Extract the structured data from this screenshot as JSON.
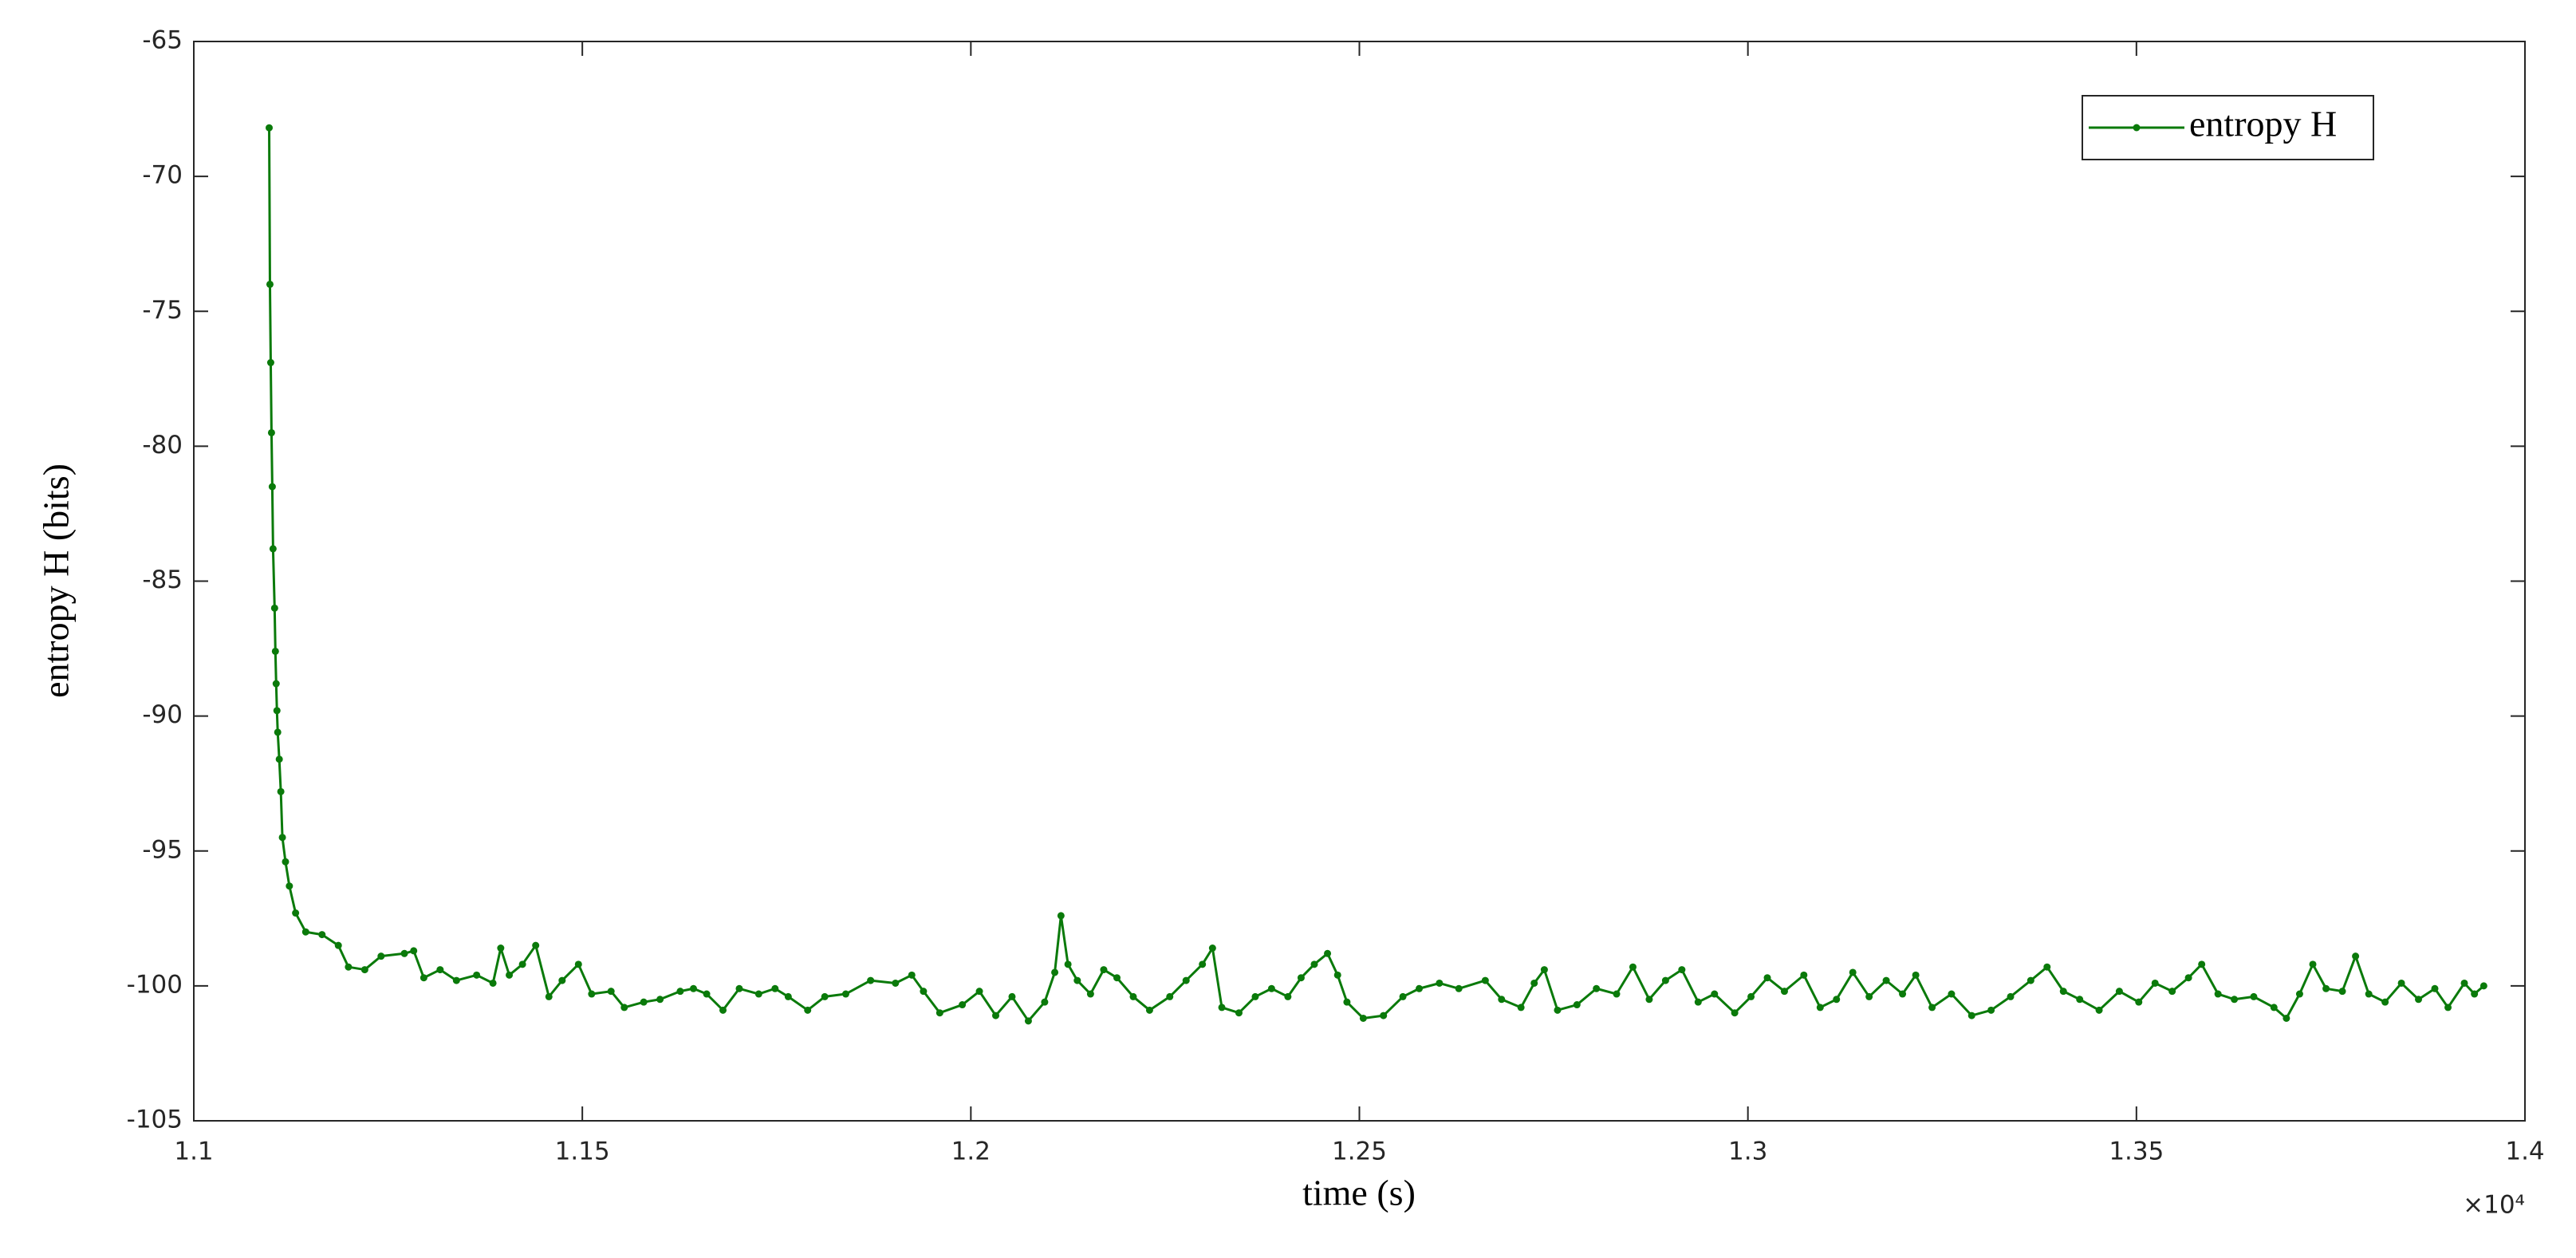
{
  "chart_data": {
    "type": "line",
    "xlabel": "time (s)",
    "ylabel": "entropy H (bits)",
    "x_multiplier": "×10⁴",
    "xlim": [
      11000,
      14000
    ],
    "xticks": [
      {
        "value": 11000,
        "label": "1.1"
      },
      {
        "value": 11500,
        "label": "1.15"
      },
      {
        "value": 12000,
        "label": "1.2"
      },
      {
        "value": 12500,
        "label": "1.25"
      },
      {
        "value": 13000,
        "label": "1.3"
      },
      {
        "value": 13500,
        "label": "1.35"
      },
      {
        "value": 14000,
        "label": "1.4"
      }
    ],
    "ylim": [
      -105,
      -65
    ],
    "yticks": [
      -105,
      -100,
      -95,
      -90,
      -85,
      -80,
      -75,
      -70,
      -65
    ],
    "grid": false,
    "legend_position": "top-right",
    "x": [
      11097,
      11098,
      11099,
      11100,
      11101,
      11102,
      11104,
      11105,
      11106,
      11107,
      11108,
      11110,
      11112,
      11114,
      11118,
      11123,
      11131,
      11144,
      11165,
      11186,
      11199,
      11220,
      11241,
      11271,
      11283,
      11296,
      11317,
      11338,
      11364,
      11385,
      11395,
      11406,
      11423,
      11440,
      11457,
      11474,
      11495,
      11512,
      11537,
      11554,
      11579,
      11600,
      11626,
      11643,
      11660,
      11681,
      11702,
      11727,
      11748,
      11765,
      11790,
      11812,
      11839,
      11871,
      11903,
      11924,
      11939,
      11960,
      11989,
      12011,
      12032,
      12053,
      12074,
      12095,
      12108,
      12116,
      12125,
      12137,
      12154,
      12171,
      12188,
      12209,
      12230,
      12256,
      12277,
      12298,
      12311,
      12323,
      12345,
      12366,
      12387,
      12408,
      12425,
      12442,
      12459,
      12472,
      12484,
      12505,
      12531,
      12556,
      12577,
      12603,
      12628,
      12662,
      12683,
      12708,
      12725,
      12738,
      12755,
      12780,
      12805,
      12831,
      12852,
      12873,
      12894,
      12915,
      12936,
      12957,
      12983,
      13004,
      13025,
      13047,
      13072,
      13093,
      13114,
      13135,
      13156,
      13178,
      13199,
      13216,
      13237,
      13262,
      13288,
      13313,
      13338,
      13364,
      13385,
      13406,
      13427,
      13452,
      13478,
      13503,
      13524,
      13546,
      13567,
      13584,
      13605,
      13626,
      13651,
      13677,
      13693,
      13710,
      13727,
      13744,
      13765,
      13782,
      13799,
      13820,
      13841,
      13863,
      13884,
      13901,
      13922,
      13935,
      13947
    ],
    "series": [
      {
        "name": "entropy H",
        "color": "#0a7a0a",
        "values": [
          -68.2,
          -74,
          -76.9,
          -79.5,
          -81.5,
          -83.8,
          -86,
          -87.6,
          -88.8,
          -89.8,
          -90.6,
          -91.6,
          -92.8,
          -94.5,
          -95.4,
          -96.3,
          -97.3,
          -98,
          -98.1,
          -98.5,
          -99.3,
          -99.4,
          -98.9,
          -98.8,
          -98.7,
          -99.7,
          -99.4,
          -99.8,
          -99.6,
          -99.9,
          -98.6,
          -99.6,
          -99.2,
          -98.5,
          -100.4,
          -99.8,
          -99.2,
          -100.3,
          -100.2,
          -100.8,
          -100.6,
          -100.5,
          -100.2,
          -100.1,
          -100.3,
          -100.9,
          -100.1,
          -100.3,
          -100.1,
          -100.4,
          -100.9,
          -100.4,
          -100.3,
          -99.8,
          -99.9,
          -99.6,
          -100.2,
          -101,
          -100.7,
          -100.2,
          -101.1,
          -100.4,
          -101.3,
          -100.6,
          -99.5,
          -97.4,
          -99.2,
          -99.8,
          -100.3,
          -99.4,
          -99.7,
          -100.4,
          -100.9,
          -100.4,
          -99.8,
          -99.2,
          -98.6,
          -100.8,
          -101,
          -100.4,
          -100.1,
          -100.4,
          -99.7,
          -99.2,
          -98.8,
          -99.6,
          -100.6,
          -101.2,
          -101.1,
          -100.4,
          -100.1,
          -99.9,
          -100.1,
          -99.8,
          -100.5,
          -100.8,
          -99.9,
          -99.4,
          -100.9,
          -100.7,
          -100.1,
          -100.3,
          -99.3,
          -100.5,
          -99.8,
          -99.4,
          -100.6,
          -100.3,
          -101,
          -100.4,
          -99.7,
          -100.2,
          -99.6,
          -100.8,
          -100.5,
          -99.5,
          -100.4,
          -99.8,
          -100.3,
          -99.6,
          -100.8,
          -100.3,
          -101.1,
          -100.9,
          -100.4,
          -99.8,
          -99.3,
          -100.2,
          -100.5,
          -100.9,
          -100.2,
          -100.6,
          -99.9,
          -100.2,
          -99.7,
          -99.2,
          -100.3,
          -100.5,
          -100.4,
          -100.8,
          -101.2,
          -100.3,
          -99.2,
          -100.1,
          -100.2,
          -98.9,
          -100.3,
          -100.6,
          -99.9,
          -100.5,
          -100.1,
          -100.8,
          -99.9,
          -100.3,
          -100
        ]
      }
    ]
  }
}
